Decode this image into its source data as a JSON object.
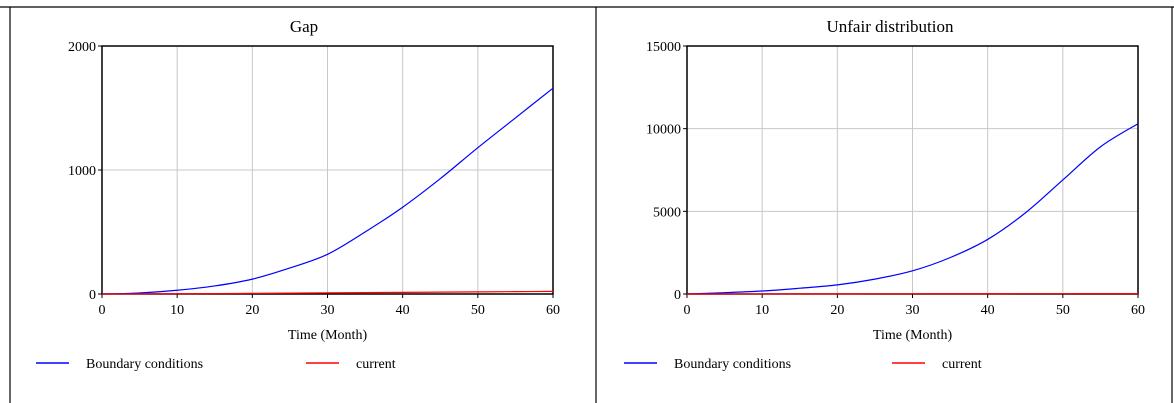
{
  "chart_data": [
    {
      "type": "line",
      "title": "Gap",
      "xlabel": "Time (Month)",
      "ylabel": "",
      "xlim": [
        0,
        60
      ],
      "ylim": [
        0,
        2000
      ],
      "xticks": [
        0,
        10,
        20,
        30,
        40,
        50,
        60
      ],
      "yticks": [
        0,
        1000,
        2000
      ],
      "grid": true,
      "legend_position": "bottom",
      "x": [
        0,
        5,
        10,
        15,
        20,
        25,
        30,
        35,
        40,
        45,
        50,
        55,
        60
      ],
      "series": [
        {
          "name": "Boundary conditions",
          "color": "#0000ff",
          "values": [
            0,
            8,
            30,
            65,
            120,
            210,
            320,
            500,
            700,
            930,
            1180,
            1420,
            1660
          ]
        },
        {
          "name": "current",
          "color": "#ff0000",
          "values": [
            0,
            1,
            2,
            3,
            5,
            7,
            9,
            11,
            13,
            15,
            17,
            19,
            21
          ]
        }
      ]
    },
    {
      "type": "line",
      "title": "Unfair distribution",
      "xlabel": "Time (Month)",
      "ylabel": "",
      "xlim": [
        0,
        60
      ],
      "ylim": [
        0,
        15000
      ],
      "xticks": [
        0,
        10,
        20,
        30,
        40,
        50,
        60
      ],
      "yticks": [
        0,
        5000,
        10000,
        15000
      ],
      "grid": true,
      "legend_position": "bottom",
      "x": [
        0,
        5,
        10,
        15,
        20,
        25,
        30,
        35,
        40,
        45,
        50,
        55,
        60
      ],
      "series": [
        {
          "name": "Boundary conditions",
          "color": "#0000ff",
          "values": [
            0,
            80,
            180,
            350,
            550,
            900,
            1400,
            2200,
            3300,
            4900,
            6900,
            8900,
            10300
          ]
        },
        {
          "name": "current",
          "color": "#ff0000",
          "values": [
            0,
            2,
            4,
            6,
            8,
            10,
            12,
            14,
            16,
            18,
            20,
            22,
            24
          ]
        }
      ]
    }
  ]
}
